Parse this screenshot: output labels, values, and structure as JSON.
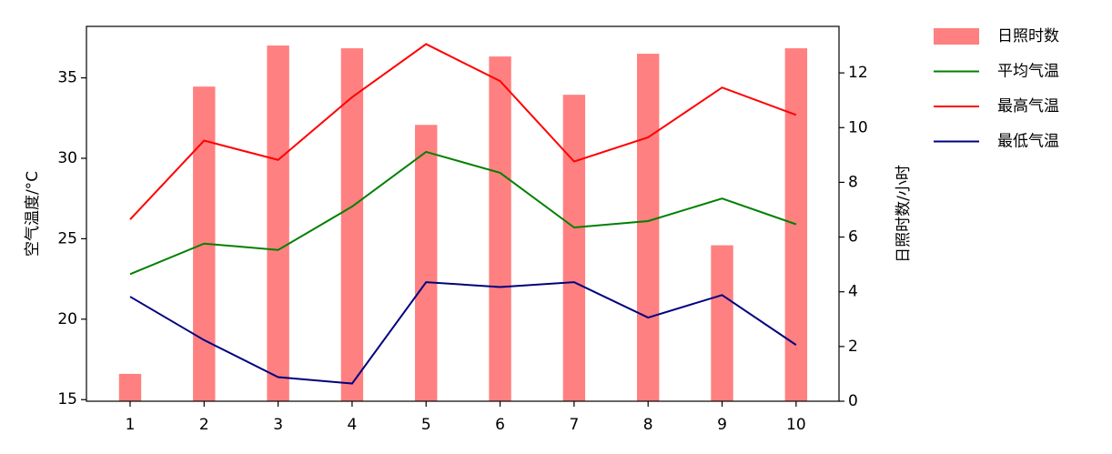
{
  "chart_data": {
    "type": "combo",
    "x": [
      1,
      2,
      3,
      4,
      5,
      6,
      7,
      8,
      9,
      10
    ],
    "xlim": [
      0.41,
      10.58
    ],
    "xticks": [
      1,
      2,
      3,
      4,
      5,
      6,
      7,
      8,
      9,
      10
    ],
    "ylabel": "空气温度/°C",
    "ylim": [
      14.9,
      38.2
    ],
    "yticks": [
      15,
      20,
      25,
      30,
      35
    ],
    "y2label": "日照时数/小时",
    "y2lim": [
      0,
      13.7
    ],
    "y2ticks": [
      0,
      2,
      4,
      6,
      8,
      10,
      12
    ],
    "legend": "outside-upper-right",
    "series": [
      {
        "name": "日照时数",
        "type": "bar",
        "axis": "y2",
        "color": "#ff8080",
        "values": [
          1.0,
          11.5,
          13.0,
          12.9,
          10.1,
          12.6,
          11.2,
          12.7,
          5.7,
          12.9
        ]
      },
      {
        "name": "平均气温",
        "type": "line",
        "color": "#008000",
        "values": [
          22.8,
          24.7,
          24.3,
          27.0,
          30.4,
          29.1,
          25.7,
          26.1,
          27.5,
          25.9
        ]
      },
      {
        "name": "最高气温",
        "type": "line",
        "color": "#ff0000",
        "values": [
          26.2,
          31.1,
          29.9,
          33.8,
          37.1,
          34.8,
          29.8,
          31.3,
          34.4,
          32.7
        ]
      },
      {
        "name": "最低气温",
        "type": "line",
        "color": "#000080",
        "values": [
          21.4,
          18.7,
          16.4,
          16.0,
          22.3,
          22.0,
          22.3,
          20.1,
          21.5,
          18.4
        ]
      }
    ]
  }
}
